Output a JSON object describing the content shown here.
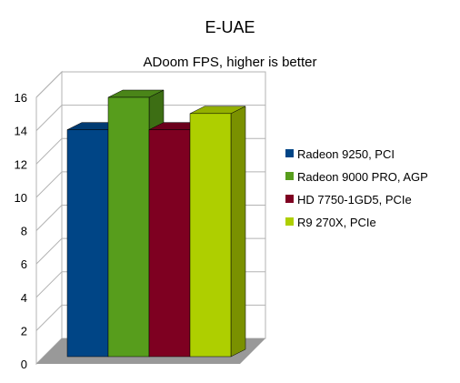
{
  "chart_data": {
    "type": "bar",
    "title": "E-UAE",
    "subtitle": "ADoom FPS, higher is better",
    "xlabel": "",
    "ylabel": "",
    "ylim": [
      0,
      16
    ],
    "yticks": [
      0,
      2,
      4,
      6,
      8,
      10,
      12,
      14,
      16
    ],
    "grid": true,
    "legend_position": "right",
    "style": "3d",
    "series": [
      {
        "name": "Radeon 9250, PCI",
        "value": 14,
        "color": "#004586"
      },
      {
        "name": "Radeon 9000 PRO, AGP",
        "value": 16,
        "color": "#579d1c"
      },
      {
        "name": "HD 7750-1GD5, PCIe",
        "value": 14,
        "color": "#7e0021"
      },
      {
        "name": "R9 270X, PCIe",
        "value": 15,
        "color": "#aecf00"
      }
    ]
  }
}
